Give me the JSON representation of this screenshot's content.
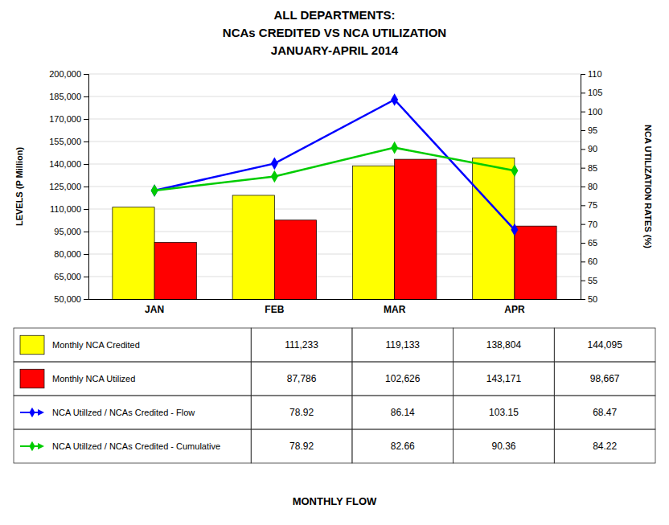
{
  "chart_data": {
    "type": "bar",
    "title": [
      "ALL DEPARTMENTS:",
      "NCAs CREDITED VS NCA UTILIZATION",
      "JANUARY-APRIL 2014"
    ],
    "x_label": "MONTHLY FLOW",
    "y_label": "LEVELS (P Million)",
    "y2_label": "NCA UTILIZATION RATES (%)",
    "categories": [
      "JAN",
      "FEB",
      "MAR",
      "APR"
    ],
    "series": [
      {
        "name": "Monthly NCA Credited",
        "type": "bar",
        "color": "#FFFF00",
        "values": [
          111233,
          119133,
          138804,
          144095
        ],
        "value_labels": [
          "111,233",
          "119,133",
          "138,804",
          "144,095"
        ]
      },
      {
        "name": "Monthly NCA Utilized",
        "type": "bar",
        "color": "#FF0000",
        "values": [
          87786,
          102626,
          143171,
          98667
        ],
        "value_labels": [
          "87,786",
          "102,626",
          "143,171",
          "98,667"
        ]
      },
      {
        "name": "NCA Utillzed / NCAs Credited - Flow",
        "type": "line",
        "axis": "y2",
        "color": "#0000FF",
        "marker": "diamond",
        "values": [
          78.92,
          86.14,
          103.15,
          68.47
        ]
      },
      {
        "name": "NCA Utillzed / NCAs Credited - Cumulative",
        "type": "line",
        "axis": "y2",
        "color": "#00CC00",
        "marker": "diamond",
        "values": [
          78.92,
          82.66,
          90.36,
          84.22
        ]
      }
    ],
    "ylim": [
      50000,
      200000
    ],
    "yticks": [
      {
        "value": 50000,
        "label": "50,000"
      },
      {
        "value": 65000,
        "label": "65,000"
      },
      {
        "value": 80000,
        "label": "80,000"
      },
      {
        "value": 95000,
        "label": "95,000"
      },
      {
        "value": 110000,
        "label": "110,000"
      },
      {
        "value": 125000,
        "label": "125,000"
      },
      {
        "value": 140000,
        "label": "140,000"
      },
      {
        "value": 155000,
        "label": "155,000"
      },
      {
        "value": 170000,
        "label": "170,000"
      },
      {
        "value": 185000,
        "label": "185,000"
      },
      {
        "value": 200000,
        "label": "200,000"
      }
    ],
    "y2lim": [
      50,
      110
    ],
    "y2ticks": [
      50,
      55,
      60,
      65,
      70,
      75,
      80,
      85,
      90,
      95,
      100,
      105,
      110
    ],
    "grid": true,
    "legend": "bottom"
  }
}
